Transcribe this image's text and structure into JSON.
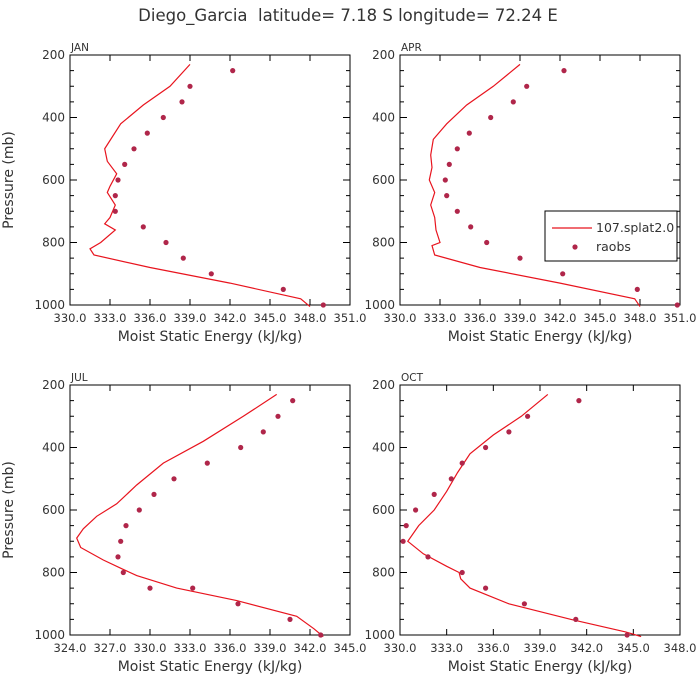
{
  "title": "Diego_Garcia  latitude= 7.18 S longitude= 72.24 E",
  "colors": {
    "model": "#e8141e",
    "obs": "#b0264a",
    "axis": "#000000",
    "text": "#333333"
  },
  "legend": {
    "model_label": "107.splat2.0",
    "obs_label": "raobs"
  },
  "chart_data": [
    {
      "type": "line",
      "panel": "JAN",
      "xlabel": "Moist Static Energy (kJ/kg)",
      "ylabel": "Pressure (mb)",
      "xlim": [
        330.0,
        351.0
      ],
      "ylim": [
        1000,
        200
      ],
      "x_ticks": [
        330.0,
        333.0,
        336.0,
        339.0,
        342.0,
        345.0,
        348.0,
        351.0
      ],
      "x_tick_labels": [
        "330.0",
        "333.0",
        "336.0",
        "339.0",
        "342.0",
        "345.0",
        "348.0",
        "351.0"
      ],
      "y_ticks": [
        200,
        400,
        600,
        800,
        1000
      ],
      "y_tick_labels": [
        "200",
        "400",
        "600",
        "800",
        "1000"
      ],
      "series": [
        {
          "name": "107.splat2.0",
          "kind": "line",
          "x": [
            339.0,
            337.5,
            335.5,
            333.8,
            332.9,
            332.6,
            332.8,
            333.5,
            333.0,
            332.8,
            333.4,
            333.0,
            332.6,
            333.4,
            332.3,
            331.5,
            331.8,
            336.0,
            342.0,
            347.3,
            348.0
          ],
          "y": [
            230,
            300,
            360,
            420,
            480,
            500,
            540,
            580,
            620,
            640,
            680,
            720,
            740,
            760,
            800,
            820,
            840,
            880,
            930,
            980,
            1005
          ]
        },
        {
          "name": "raobs",
          "kind": "scatter",
          "x": [
            342.2,
            339.0,
            338.4,
            337.0,
            335.8,
            334.8,
            334.1,
            333.6,
            333.4,
            333.4,
            335.5,
            337.2,
            338.5,
            340.6,
            346.0,
            349.0
          ],
          "y": [
            250,
            300,
            350,
            400,
            450,
            500,
            550,
            600,
            650,
            700,
            750,
            800,
            850,
            900,
            950,
            1000
          ]
        }
      ]
    },
    {
      "type": "line",
      "panel": "APR",
      "xlabel": "Moist Static Energy (kJ/kg)",
      "ylabel": "Pressure (mb)",
      "xlim": [
        330.0,
        351.0
      ],
      "ylim": [
        1000,
        200
      ],
      "x_ticks": [
        330.0,
        333.0,
        336.0,
        339.0,
        342.0,
        345.0,
        348.0,
        351.0
      ],
      "x_tick_labels": [
        "330.0",
        "333.0",
        "336.0",
        "339.0",
        "342.0",
        "345.0",
        "348.0",
        "351.0"
      ],
      "y_ticks": [
        200,
        400,
        600,
        800,
        1000
      ],
      "y_tick_labels": [
        "200",
        "400",
        "600",
        "800",
        "1000"
      ],
      "series": [
        {
          "name": "107.splat2.0",
          "kind": "line",
          "x": [
            339.0,
            337.0,
            335.0,
            333.5,
            332.5,
            332.3,
            332.4,
            332.2,
            332.6,
            332.3,
            332.6,
            332.7,
            333.0,
            332.4,
            332.6,
            336.0,
            342.0,
            347.6,
            348.0
          ],
          "y": [
            230,
            300,
            360,
            420,
            470,
            520,
            560,
            600,
            640,
            680,
            720,
            760,
            800,
            810,
            840,
            880,
            930,
            980,
            1005
          ]
        },
        {
          "name": "raobs",
          "kind": "scatter",
          "x": [
            342.3,
            339.5,
            338.5,
            336.8,
            335.2,
            334.3,
            333.7,
            333.4,
            333.5,
            334.3,
            335.3,
            336.5,
            339.0,
            342.2,
            347.8,
            350.8
          ],
          "y": [
            250,
            300,
            350,
            400,
            450,
            500,
            550,
            600,
            650,
            700,
            750,
            800,
            850,
            900,
            950,
            1000
          ]
        }
      ]
    },
    {
      "type": "line",
      "panel": "JUL",
      "xlabel": "Moist Static Energy (kJ/kg)",
      "ylabel": "Pressure (mb)",
      "xlim": [
        324.0,
        345.0
      ],
      "ylim": [
        1000,
        200
      ],
      "x_ticks": [
        324.0,
        327.0,
        330.0,
        333.0,
        336.0,
        339.0,
        342.0,
        345.0
      ],
      "x_tick_labels": [
        "324.0",
        "327.0",
        "330.0",
        "333.0",
        "336.0",
        "339.0",
        "342.0",
        "345.0"
      ],
      "y_ticks": [
        200,
        400,
        600,
        800,
        1000
      ],
      "y_tick_labels": [
        "200",
        "400",
        "600",
        "800",
        "1000"
      ],
      "series": [
        {
          "name": "107.splat2.0",
          "kind": "line",
          "x": [
            339.5,
            337.0,
            334.0,
            331.0,
            329.0,
            327.5,
            326.0,
            325.0,
            324.5,
            324.8,
            326.5,
            328.0,
            329.0,
            332.0,
            336.5,
            341.0,
            342.3,
            343.0
          ],
          "y": [
            230,
            300,
            380,
            450,
            520,
            580,
            620,
            660,
            690,
            720,
            760,
            790,
            810,
            850,
            890,
            940,
            980,
            1005
          ]
        },
        {
          "name": "raobs",
          "kind": "scatter",
          "x": [
            340.7,
            339.6,
            338.5,
            336.8,
            334.3,
            331.8,
            330.3,
            329.2,
            328.2,
            327.8,
            327.6,
            328.0,
            330.0,
            333.2,
            336.6,
            340.5,
            342.8
          ],
          "y": [
            250,
            300,
            350,
            400,
            450,
            500,
            550,
            600,
            650,
            700,
            750,
            800,
            850,
            850,
            900,
            950,
            1000
          ]
        }
      ]
    },
    {
      "type": "line",
      "panel": "OCT",
      "xlabel": "Moist Static Energy (kJ/kg)",
      "ylabel": "Pressure (mb)",
      "xlim": [
        330.0,
        348.0
      ],
      "ylim": [
        1000,
        200
      ],
      "x_ticks": [
        330.0,
        333.0,
        336.0,
        339.0,
        342.0,
        345.0,
        348.0
      ],
      "x_tick_labels": [
        "330.0",
        "333.0",
        "336.0",
        "339.0",
        "342.0",
        "345.0",
        "348.0"
      ],
      "y_ticks": [
        200,
        400,
        600,
        800,
        1000
      ],
      "y_tick_labels": [
        "200",
        "400",
        "600",
        "800",
        "1000"
      ],
      "series": [
        {
          "name": "107.splat2.0",
          "kind": "line",
          "x": [
            339.5,
            337.8,
            336.0,
            334.5,
            333.7,
            333.0,
            332.2,
            331.2,
            330.5,
            331.5,
            333.0,
            333.8,
            333.9,
            334.5,
            337.0,
            341.0,
            344.5,
            345.5
          ],
          "y": [
            230,
            300,
            360,
            420,
            480,
            540,
            600,
            650,
            700,
            740,
            780,
            800,
            820,
            850,
            900,
            950,
            990,
            1005
          ]
        },
        {
          "name": "raobs",
          "kind": "scatter",
          "x": [
            341.5,
            338.2,
            337.0,
            335.5,
            334.0,
            333.3,
            332.2,
            331.0,
            330.4,
            330.2,
            331.8,
            334.0,
            335.5,
            338.0,
            341.3,
            344.6
          ],
          "y": [
            250,
            300,
            350,
            400,
            450,
            500,
            550,
            600,
            650,
            700,
            750,
            800,
            850,
            900,
            950,
            1000
          ]
        }
      ]
    }
  ]
}
